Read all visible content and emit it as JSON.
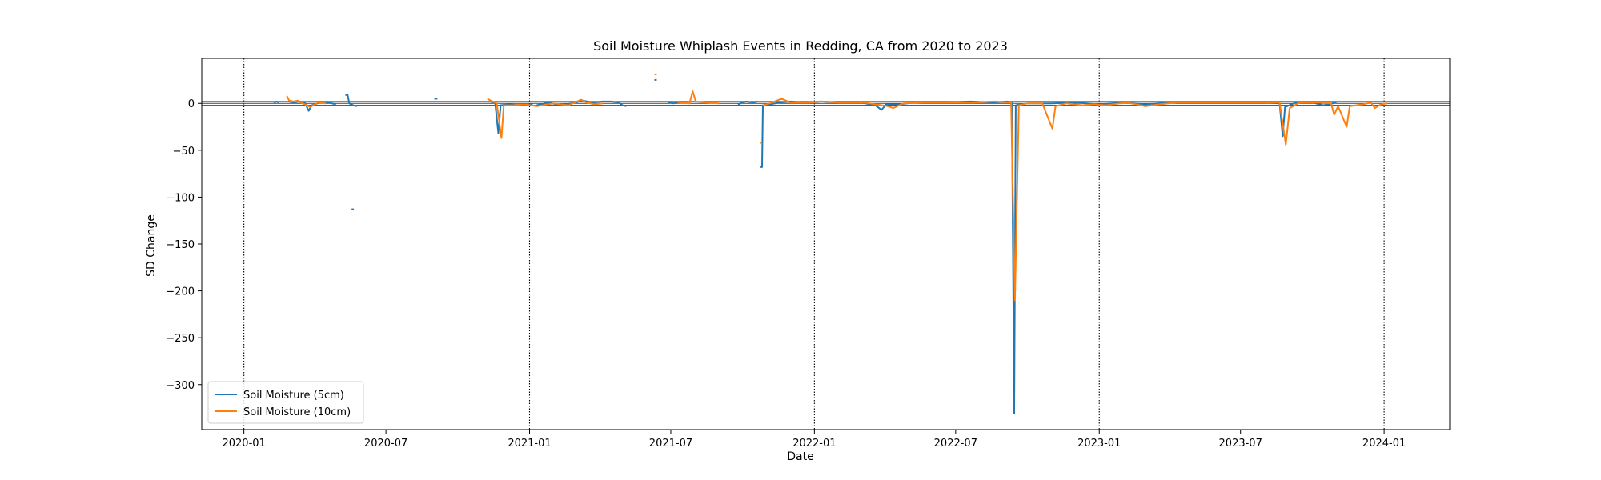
{
  "chart_data": {
    "type": "line",
    "title": "Soil Moisture Whiplash Events in Redding, CA from 2020 to 2023",
    "xlabel": "Date",
    "ylabel": "SD Change",
    "xlim": [
      "2019-11-08",
      "2024-03-25"
    ],
    "ylim": [
      -348,
      48
    ],
    "x_ticks": [
      {
        "date": "2020-01-01",
        "label": "2020-01"
      },
      {
        "date": "2020-07-01",
        "label": "2020-07"
      },
      {
        "date": "2021-01-01",
        "label": "2021-01"
      },
      {
        "date": "2021-07-01",
        "label": "2021-07"
      },
      {
        "date": "2022-01-01",
        "label": "2022-01"
      },
      {
        "date": "2022-07-01",
        "label": "2022-07"
      },
      {
        "date": "2023-01-01",
        "label": "2023-01"
      },
      {
        "date": "2023-07-01",
        "label": "2023-07"
      },
      {
        "date": "2024-01-01",
        "label": "2024-01"
      }
    ],
    "y_ticks": [
      0,
      -50,
      -100,
      -150,
      -200,
      -250,
      -300
    ],
    "y_tick_labels": [
      "0",
      "−50",
      "−100",
      "−150",
      "−200",
      "−250",
      "−300"
    ],
    "year_boundaries": [
      "2020-01-01",
      "2021-01-01",
      "2022-01-01",
      "2023-01-01",
      "2024-01-01"
    ],
    "reference_lines": [
      2,
      0,
      -2
    ],
    "legend_position": "lower-left",
    "series": [
      {
        "name": "Soil Moisture (5cm)",
        "color": "#1f77b4",
        "segments": [
          [
            [
              "2020-02-08",
              1
            ],
            [
              "2020-02-12",
              2
            ],
            [
              "2020-02-15",
              1
            ]
          ],
          [
            [
              "2020-02-27",
              2
            ],
            [
              "2020-03-05",
              1
            ],
            [
              "2020-03-12",
              2
            ],
            [
              "2020-03-19",
              1
            ],
            [
              "2020-03-24",
              -8
            ],
            [
              "2020-03-28",
              -2
            ],
            [
              "2020-04-08",
              1
            ],
            [
              "2020-04-18",
              1
            ],
            [
              "2020-04-28",
              -1
            ]
          ],
          [
            [
              "2020-05-10",
              9
            ],
            [
              "2020-05-13",
              9
            ],
            [
              "2020-05-15",
              0
            ],
            [
              "2020-05-20",
              -2
            ],
            [
              "2020-05-25",
              -3
            ]
          ],
          [
            [
              "2020-05-18",
              -113
            ],
            [
              "2020-05-21",
              -113
            ]
          ],
          [
            [
              "2020-09-01",
              5
            ],
            [
              "2020-09-05",
              5
            ]
          ],
          [
            [
              "2020-11-12",
              2
            ],
            [
              "2020-11-18",
              0
            ],
            [
              "2020-11-22",
              -32
            ],
            [
              "2020-11-25",
              -2
            ],
            [
              "2020-12-05",
              -1
            ],
            [
              "2020-12-20",
              -2
            ],
            [
              "2021-01-05",
              -1
            ]
          ],
          [
            [
              "2021-01-10",
              -2
            ],
            [
              "2021-01-25",
              1
            ],
            [
              "2021-02-10",
              -2
            ],
            [
              "2021-03-01",
              1
            ],
            [
              "2021-03-10",
              3
            ],
            [
              "2021-03-22",
              1
            ],
            [
              "2021-04-05",
              2
            ],
            [
              "2021-04-15",
              2
            ],
            [
              "2021-04-25",
              1
            ],
            [
              "2021-04-30",
              -2
            ],
            [
              "2021-05-05",
              -3
            ]
          ],
          [
            [
              "2021-06-10",
              25
            ],
            [
              "2021-06-13",
              25
            ]
          ],
          [
            [
              "2021-06-28",
              1
            ],
            [
              "2021-07-05",
              0
            ],
            [
              "2021-07-12",
              1
            ]
          ],
          [
            [
              "2021-09-25",
              -1
            ],
            [
              "2021-10-05",
              2
            ],
            [
              "2021-10-15",
              1
            ],
            [
              "2021-10-20",
              2
            ]
          ],
          [
            [
              "2021-10-24",
              -68
            ],
            [
              "2021-10-26",
              -68
            ],
            [
              "2021-10-27",
              -2
            ],
            [
              "2021-11-05",
              -1
            ],
            [
              "2021-11-18",
              1
            ],
            [
              "2021-12-01",
              2
            ],
            [
              "2021-12-20",
              1
            ],
            [
              "2022-01-10",
              2
            ],
            [
              "2022-02-01",
              1
            ],
            [
              "2022-03-01",
              1
            ],
            [
              "2022-03-20",
              -2
            ],
            [
              "2022-03-28",
              -7
            ],
            [
              "2022-04-03",
              -1
            ],
            [
              "2022-04-20",
              -1
            ],
            [
              "2022-05-10",
              1
            ],
            [
              "2022-06-15",
              1
            ],
            [
              "2022-07-20",
              2
            ],
            [
              "2022-08-15",
              1
            ],
            [
              "2022-09-05",
              2
            ],
            [
              "2022-09-11",
              1
            ],
            [
              "2022-09-14",
              -331
            ],
            [
              "2022-09-16",
              -2
            ],
            [
              "2022-10-01",
              0
            ],
            [
              "2022-11-01",
              0
            ],
            [
              "2022-12-01",
              1
            ],
            [
              "2023-01-01",
              -1
            ],
            [
              "2023-02-01",
              1
            ],
            [
              "2023-03-01",
              -1
            ],
            [
              "2023-04-01",
              1
            ],
            [
              "2023-05-01",
              1
            ],
            [
              "2023-06-01",
              1
            ],
            [
              "2023-07-01",
              1
            ],
            [
              "2023-08-01",
              1
            ],
            [
              "2023-08-20",
              0
            ],
            [
              "2023-08-24",
              -35
            ],
            [
              "2023-08-27",
              -4
            ],
            [
              "2023-09-10",
              1
            ],
            [
              "2023-10-01",
              1
            ],
            [
              "2023-10-15",
              -2
            ],
            [
              "2023-11-01",
              1
            ]
          ]
        ]
      },
      {
        "name": "Soil Moisture (10cm)",
        "color": "#ff7f0e",
        "segments": [
          [
            [
              "2020-02-25",
              8
            ],
            [
              "2020-02-28",
              3
            ],
            [
              "2020-03-05",
              2
            ],
            [
              "2020-03-10",
              3
            ],
            [
              "2020-03-16",
              0
            ],
            [
              "2020-03-22",
              -2
            ],
            [
              "2020-03-26",
              -4
            ],
            [
              "2020-04-05",
              1
            ],
            [
              "2020-04-15",
              0
            ]
          ],
          [
            [
              "2020-11-08",
              5
            ],
            [
              "2020-11-12",
              3
            ],
            [
              "2020-11-20",
              0
            ],
            [
              "2020-11-26",
              -37
            ],
            [
              "2020-11-29",
              -2
            ],
            [
              "2020-12-10",
              -2
            ],
            [
              "2020-12-25",
              -1
            ],
            [
              "2021-01-10",
              -3
            ],
            [
              "2021-02-01",
              0
            ],
            [
              "2021-02-20",
              -2
            ],
            [
              "2021-03-08",
              4
            ],
            [
              "2021-03-15",
              1
            ],
            [
              "2021-03-25",
              -1
            ],
            [
              "2021-04-05",
              0
            ]
          ],
          [
            [
              "2021-06-10",
              31
            ],
            [
              "2021-06-13",
              31
            ]
          ],
          [
            [
              "2021-07-10",
              1
            ],
            [
              "2021-07-25",
              0
            ],
            [
              "2021-07-29",
              13
            ],
            [
              "2021-08-02",
              2
            ],
            [
              "2021-08-15",
              1
            ],
            [
              "2021-09-01",
              0
            ]
          ],
          [
            [
              "2021-10-24",
              -42
            ],
            [
              "2021-10-25",
              -42
            ]
          ],
          [
            [
              "2021-10-27",
              -2
            ],
            [
              "2021-11-05",
              0
            ],
            [
              "2021-11-20",
              5
            ],
            [
              "2021-12-01",
              1
            ],
            [
              "2021-12-25",
              1
            ],
            [
              "2022-01-10",
              2
            ],
            [
              "2022-02-01",
              1
            ],
            [
              "2022-03-05",
              1
            ],
            [
              "2022-04-05",
              -3
            ],
            [
              "2022-04-12",
              -5
            ],
            [
              "2022-04-25",
              0
            ],
            [
              "2022-05-20",
              1
            ],
            [
              "2022-06-20",
              1
            ],
            [
              "2022-07-25",
              1
            ],
            [
              "2022-08-20",
              2
            ],
            [
              "2022-09-10",
              1
            ],
            [
              "2022-09-15",
              -210
            ],
            [
              "2022-09-20",
              -2
            ],
            [
              "2022-10-01",
              0
            ],
            [
              "2022-10-20",
              0
            ],
            [
              "2022-11-02",
              -27
            ],
            [
              "2022-11-06",
              -3
            ],
            [
              "2022-11-20",
              0
            ],
            [
              "2022-12-10",
              -2
            ],
            [
              "2022-12-25",
              -1
            ],
            [
              "2023-01-10",
              -2
            ],
            [
              "2023-02-05",
              1
            ],
            [
              "2023-03-01",
              -3
            ],
            [
              "2023-03-20",
              -1
            ],
            [
              "2023-04-10",
              1
            ],
            [
              "2023-05-10",
              1
            ],
            [
              "2023-06-10",
              1
            ],
            [
              "2023-07-10",
              1
            ],
            [
              "2023-08-20",
              1
            ],
            [
              "2023-08-28",
              -44
            ],
            [
              "2023-09-02",
              -5
            ],
            [
              "2023-09-15",
              1
            ],
            [
              "2023-10-10",
              1
            ],
            [
              "2023-10-25",
              0
            ],
            [
              "2023-10-29",
              -12
            ],
            [
              "2023-11-03",
              -3
            ],
            [
              "2023-11-14",
              -25
            ],
            [
              "2023-11-18",
              -3
            ],
            [
              "2023-12-05",
              -1
            ],
            [
              "2023-12-15",
              1
            ],
            [
              "2023-12-20",
              -5
            ],
            [
              "2023-12-28",
              -1
            ],
            [
              "2024-01-05",
              0
            ]
          ]
        ]
      }
    ]
  }
}
